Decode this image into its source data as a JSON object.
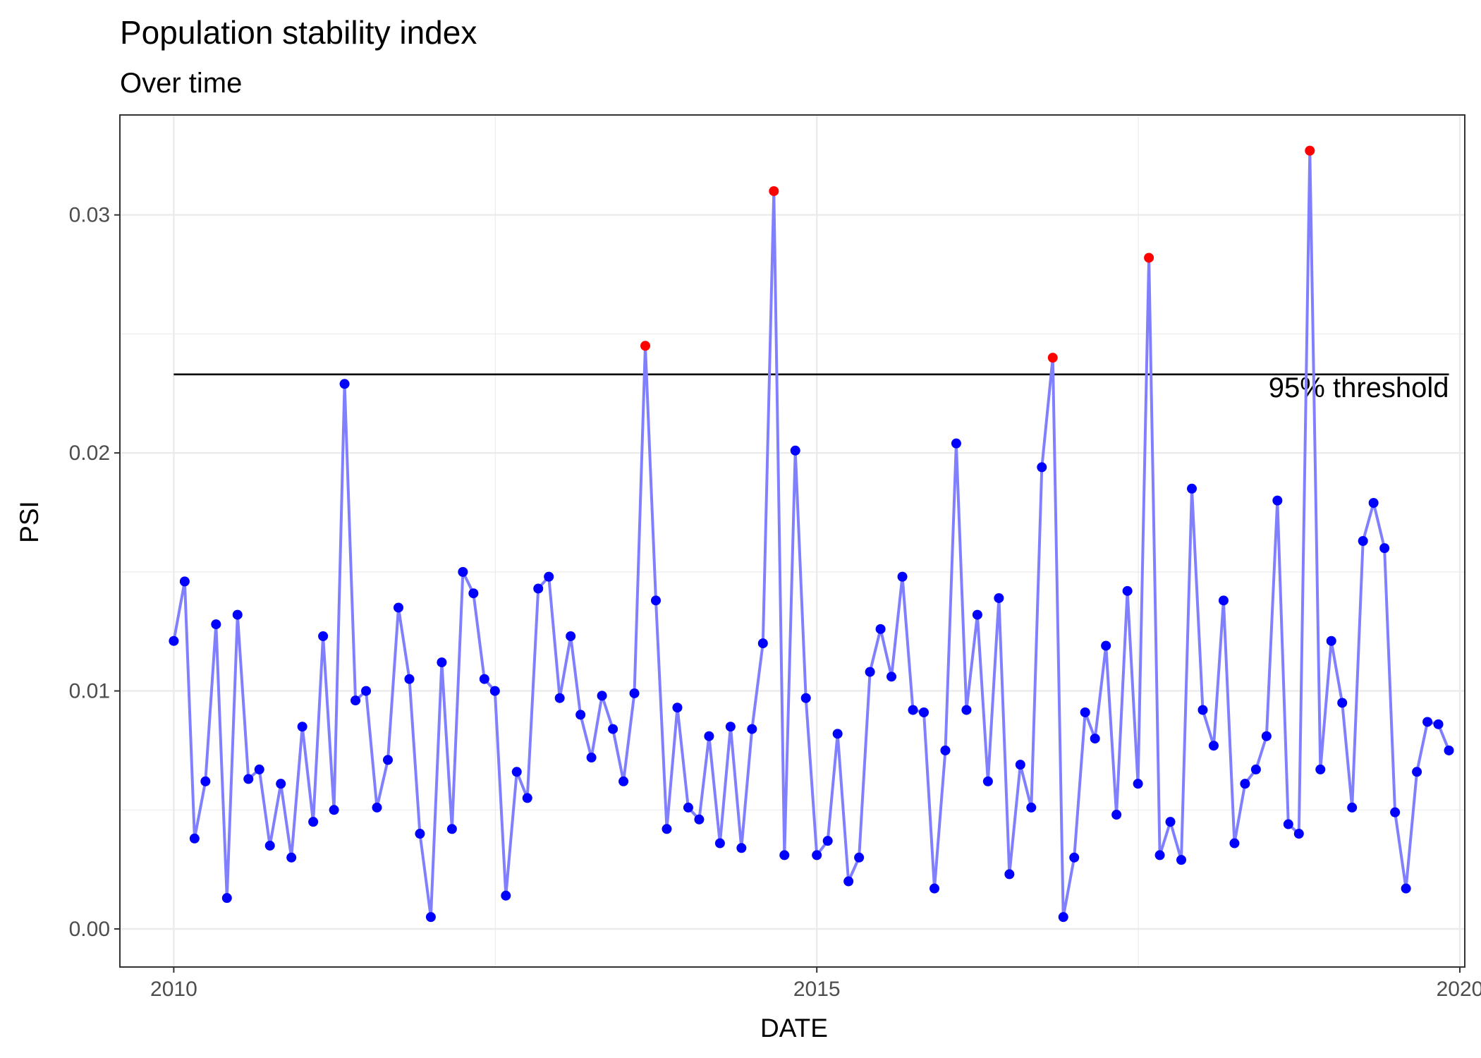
{
  "chart_data": {
    "type": "line",
    "title": "Population stability index",
    "subtitle": "Over time",
    "xlabel": "DATE",
    "ylabel": "PSI",
    "x_range": [
      "2009-08-01",
      "2020-01-15"
    ],
    "ylim": [
      -0.0016,
      0.0342
    ],
    "x_ticks": [
      {
        "date": "2010-01-01",
        "label": "2010"
      },
      {
        "date": "2015-01-01",
        "label": "2015"
      },
      {
        "date": "2020-01-01",
        "label": "2020"
      }
    ],
    "y_ticks": [
      {
        "value": 0.0,
        "label": "0.00"
      },
      {
        "value": 0.01,
        "label": "0.01"
      },
      {
        "value": 0.02,
        "label": "0.02"
      },
      {
        "value": 0.03,
        "label": "0.03"
      }
    ],
    "grid": true,
    "series": [
      {
        "line_color": "#8080ff",
        "point_color": "#0000ff",
        "highlight_color": "#ff0000",
        "start_date": "2010-01",
        "frequency": "monthly",
        "values": [
          0.0121,
          0.0146,
          0.0038,
          0.0062,
          0.0128,
          0.0013,
          0.0132,
          0.0063,
          0.0067,
          0.0035,
          0.0061,
          0.003,
          0.0085,
          0.0045,
          0.0123,
          0.005,
          0.0229,
          0.0096,
          0.01,
          0.0051,
          0.0071,
          0.0135,
          0.0105,
          0.004,
          0.0005,
          0.0112,
          0.0042,
          0.015,
          0.0141,
          0.0105,
          0.01,
          0.0014,
          0.0066,
          0.0055,
          0.0143,
          0.0148,
          0.0097,
          0.0123,
          0.009,
          0.0072,
          0.0098,
          0.0084,
          0.0062,
          0.0099,
          0.0245,
          0.0138,
          0.0042,
          0.0093,
          0.0051,
          0.0046,
          0.0081,
          0.0036,
          0.0085,
          0.0034,
          0.0084,
          0.012,
          0.031,
          0.0031,
          0.0201,
          0.0097,
          0.0031,
          0.0037,
          0.0082,
          0.002,
          0.003,
          0.0108,
          0.0126,
          0.0106,
          0.0148,
          0.0092,
          0.0091,
          0.0017,
          0.0075,
          0.0204,
          0.0092,
          0.0132,
          0.0062,
          0.0139,
          0.0023,
          0.0069,
          0.0051,
          0.0194,
          0.024,
          0.0005,
          0.003,
          0.0091,
          0.008,
          0.0119,
          0.0048,
          0.0142,
          0.0061,
          0.0282,
          0.0031,
          0.0045,
          0.0029,
          0.0185,
          0.0092,
          0.0077,
          0.0138,
          0.0036,
          0.0061,
          0.0067,
          0.0081,
          0.018,
          0.0044,
          0.004,
          0.0327,
          0.0067,
          0.0121,
          0.0095,
          0.0051,
          0.0163,
          0.0179,
          0.016,
          0.0049,
          0.0017,
          0.0066,
          0.0087,
          0.0086,
          0.0075
        ]
      }
    ],
    "threshold": {
      "value": 0.0233,
      "label": "95% threshold",
      "color": "#000000"
    },
    "highlight_rule": "values above threshold shown in red"
  }
}
